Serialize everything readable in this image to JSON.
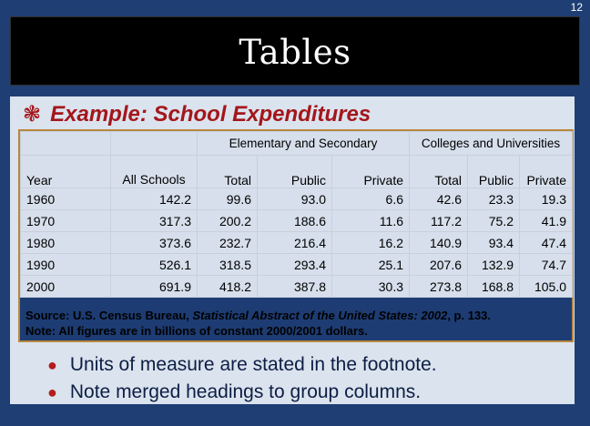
{
  "slide_number": "12",
  "title": "Tables",
  "example": {
    "label": "Example:  School Expenditures",
    "icon": "snowflake-bullet-icon",
    "color": "#a3161a"
  },
  "table": {
    "group_headers": {
      "elementary": "Elementary and Secondary",
      "colleges": "Colleges and Universities"
    },
    "columns": [
      "Year",
      "All Schools",
      "Total",
      "Public",
      "Private",
      "Total",
      "Public",
      "Private"
    ],
    "rows": [
      [
        "1960",
        "142.2",
        "99.6",
        "93.0",
        "6.6",
        "42.6",
        "23.3",
        "19.3"
      ],
      [
        "1970",
        "317.3",
        "200.2",
        "188.6",
        "11.6",
        "117.2",
        "75.2",
        "41.9"
      ],
      [
        "1980",
        "373.6",
        "232.7",
        "216.4",
        "16.2",
        "140.9",
        "93.4",
        "47.4"
      ],
      [
        "1990",
        "526.1",
        "318.5",
        "293.4",
        "25.1",
        "207.6",
        "132.9",
        "74.7"
      ],
      [
        "2000",
        "691.9",
        "418.2",
        "387.8",
        "30.3",
        "273.8",
        "168.8",
        "105.0"
      ]
    ],
    "source_prefix": "Source: U.S. Census Bureau, ",
    "source_title": "Statistical Abstract of the United States: 2002",
    "source_suffix": ", p. 133.",
    "note": "Note:  All figures are in billions of constant 2000/2001 dollars."
  },
  "bullets": [
    "Units of measure are stated in the footnote.",
    "Note merged headings to group columns."
  ]
}
